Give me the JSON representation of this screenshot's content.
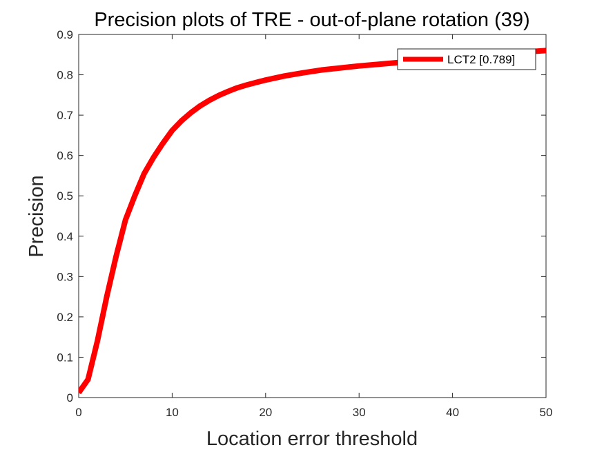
{
  "chart_data": {
    "type": "line",
    "title": "Precision plots of TRE - out-of-plane rotation (39)",
    "xlabel": "Location error threshold",
    "ylabel": "Precision",
    "xlim": [
      0,
      50
    ],
    "ylim": [
      0,
      0.9
    ],
    "xticks": [
      "0",
      "10",
      "20",
      "30",
      "40",
      "50"
    ],
    "yticks": [
      "0",
      "0.1",
      "0.2",
      "0.3",
      "0.4",
      "0.5",
      "0.6",
      "0.7",
      "0.8",
      "0.9"
    ],
    "grid": false,
    "legend_position": "top-right",
    "series": [
      {
        "name": "LCT2 [0.789]",
        "color": "#ff0000",
        "x": [
          0,
          1,
          2,
          3,
          4,
          5,
          6,
          7,
          8,
          9,
          10,
          11,
          12,
          13,
          14,
          15,
          16,
          17,
          18,
          19,
          20,
          22,
          24,
          26,
          28,
          30,
          32,
          34,
          36,
          38,
          40,
          42,
          44,
          46,
          48,
          50
        ],
        "y": [
          0.012,
          0.045,
          0.14,
          0.25,
          0.35,
          0.44,
          0.5,
          0.555,
          0.595,
          0.63,
          0.662,
          0.686,
          0.706,
          0.723,
          0.737,
          0.749,
          0.759,
          0.768,
          0.775,
          0.781,
          0.787,
          0.797,
          0.805,
          0.812,
          0.817,
          0.822,
          0.826,
          0.83,
          0.834,
          0.838,
          0.842,
          0.846,
          0.85,
          0.854,
          0.857,
          0.86
        ]
      }
    ]
  }
}
